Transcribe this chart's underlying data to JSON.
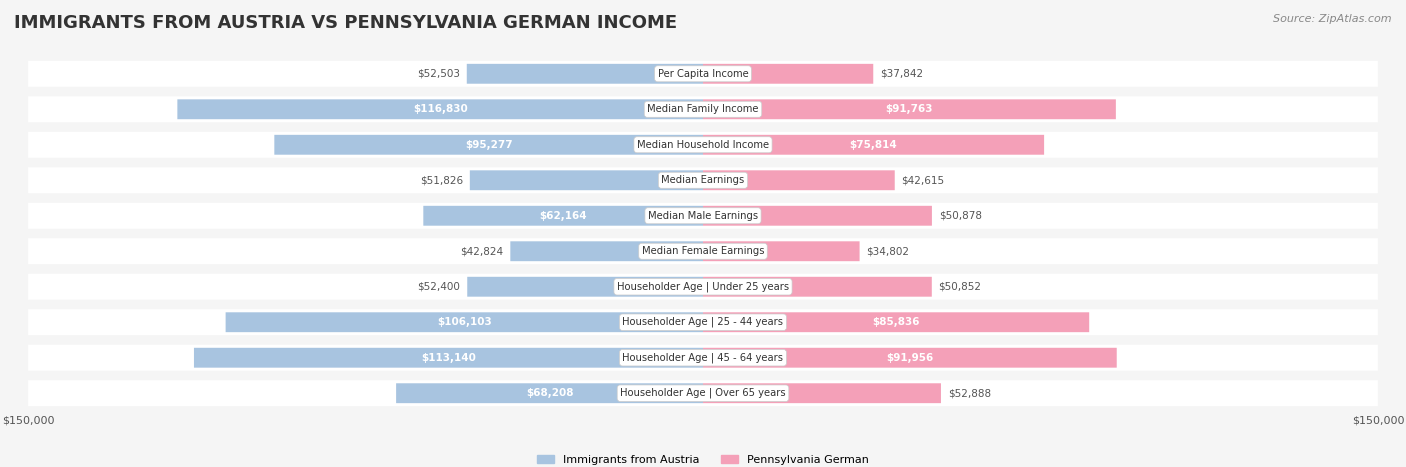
{
  "title": "IMMIGRANTS FROM AUSTRIA VS PENNSYLVANIA GERMAN INCOME",
  "source": "Source: ZipAtlas.com",
  "categories": [
    "Per Capita Income",
    "Median Family Income",
    "Median Household Income",
    "Median Earnings",
    "Median Male Earnings",
    "Median Female Earnings",
    "Householder Age | Under 25 years",
    "Householder Age | 25 - 44 years",
    "Householder Age | 45 - 64 years",
    "Householder Age | Over 65 years"
  ],
  "austria_values": [
    52503,
    116830,
    95277,
    51826,
    62164,
    42824,
    52400,
    106103,
    113140,
    68208
  ],
  "pa_german_values": [
    37842,
    91763,
    75814,
    42615,
    50878,
    34802,
    50852,
    85836,
    91956,
    52888
  ],
  "austria_color": "#a8c4e0",
  "pa_german_color": "#f4a0b8",
  "austria_label_color_inside": "#ffffff",
  "austria_label_color_outside": "#666666",
  "pa_german_label_color_inside": "#ffffff",
  "pa_german_label_color_outside": "#666666",
  "background_color": "#f5f5f5",
  "row_bg_color": "#ffffff",
  "max_value": 150000,
  "label_austria": "Immigrants from Austria",
  "label_pa": "Pennsylvania German",
  "austria_inside_threshold": 60000,
  "pa_inside_threshold": 60000
}
